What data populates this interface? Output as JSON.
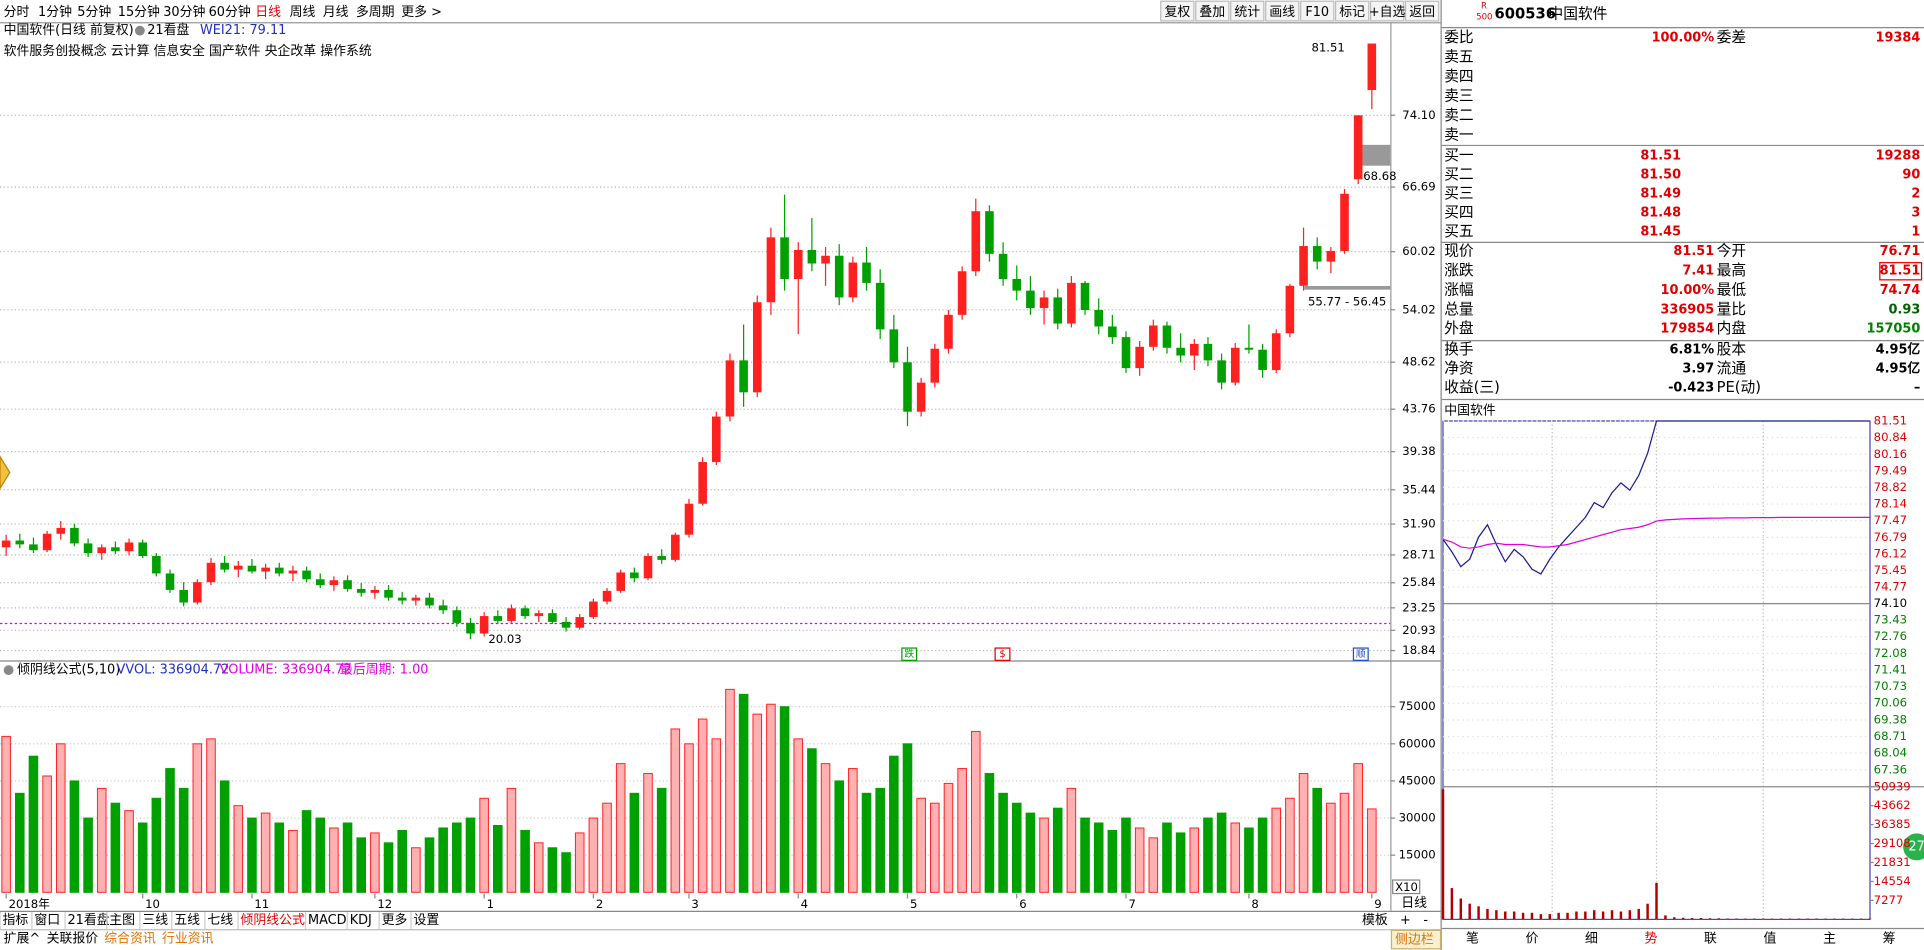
{
  "toolbar": {
    "periods": [
      {
        "label": "分时"
      },
      {
        "label": "1分钟"
      },
      {
        "label": "5分钟"
      },
      {
        "label": "15分钟"
      },
      {
        "label": "30分钟"
      },
      {
        "label": "60分钟"
      },
      {
        "label": "日线",
        "active": true
      },
      {
        "label": "周线"
      },
      {
        "label": "月线"
      },
      {
        "label": "多周期"
      },
      {
        "label": "更多 >"
      }
    ],
    "buttons": [
      "复权",
      "叠加",
      "统计",
      "画线",
      "F10",
      "标记",
      "+自选",
      "返回"
    ]
  },
  "main_chart": {
    "type": "candlestick",
    "title": "中国软件(日线 前复权)",
    "indicator_name": "21看盘",
    "indicator_value": "WEI21: 79.11",
    "concepts": "软件服务创投概念 云计算 信息安全 国产软件 央企改革 操作系统",
    "categories": [
      "2018年",
      null,
      null,
      null,
      null,
      null,
      null,
      null,
      null,
      null,
      "10",
      null,
      null,
      null,
      null,
      null,
      null,
      null,
      "11",
      null,
      null,
      null,
      null,
      null,
      null,
      null,
      null,
      "12",
      null,
      null,
      null,
      null,
      null,
      null,
      null,
      "1",
      null,
      null,
      null,
      null,
      null,
      null,
      null,
      "2",
      null,
      null,
      null,
      null,
      null,
      null,
      "3",
      null,
      null,
      null,
      null,
      null,
      null,
      null,
      "4",
      null,
      null,
      null,
      null,
      null,
      null,
      null,
      "5",
      null,
      null,
      null,
      null,
      null,
      null,
      null,
      "6",
      null,
      null,
      null,
      null,
      null,
      null,
      null,
      "7",
      null,
      null,
      null,
      null,
      null,
      null,
      null,
      null,
      "8",
      null,
      null,
      null,
      null,
      null,
      null,
      null,
      null,
      "9"
    ],
    "ohlc": [
      [
        29.5,
        30.8,
        28.6,
        30.2
      ],
      [
        30.2,
        30.9,
        29.4,
        29.8
      ],
      [
        29.8,
        30.5,
        28.9,
        29.2
      ],
      [
        29.2,
        31.2,
        29.0,
        30.9
      ],
      [
        30.9,
        32.2,
        30.3,
        31.5
      ],
      [
        31.5,
        31.9,
        29.6,
        29.9
      ],
      [
        29.9,
        30.4,
        28.5,
        28.9
      ],
      [
        28.9,
        29.8,
        28.2,
        29.5
      ],
      [
        29.5,
        30.1,
        28.8,
        29.1
      ],
      [
        29.1,
        30.4,
        28.7,
        30.0
      ],
      [
        30.0,
        30.3,
        28.4,
        28.6
      ],
      [
        28.6,
        28.9,
        26.5,
        26.8
      ],
      [
        26.8,
        27.2,
        24.8,
        25.1
      ],
      [
        25.1,
        25.9,
        23.4,
        23.8
      ],
      [
        23.8,
        26.2,
        23.6,
        25.9
      ],
      [
        25.9,
        28.4,
        25.6,
        27.9
      ],
      [
        27.9,
        28.6,
        26.9,
        27.2
      ],
      [
        27.2,
        28.1,
        26.4,
        27.6
      ],
      [
        27.6,
        28.3,
        26.8,
        27.0
      ],
      [
        27.0,
        27.8,
        26.2,
        27.4
      ],
      [
        27.4,
        27.9,
        26.5,
        26.8
      ],
      [
        26.8,
        27.6,
        26.0,
        27.1
      ],
      [
        27.1,
        27.5,
        25.9,
        26.2
      ],
      [
        26.2,
        26.8,
        25.3,
        25.6
      ],
      [
        25.6,
        26.5,
        25.0,
        26.1
      ],
      [
        26.1,
        26.6,
        24.9,
        25.2
      ],
      [
        25.2,
        25.8,
        24.4,
        24.8
      ],
      [
        24.8,
        25.5,
        24.2,
        25.1
      ],
      [
        25.1,
        25.6,
        24.0,
        24.3
      ],
      [
        24.3,
        24.9,
        23.6,
        24.0
      ],
      [
        24.0,
        24.6,
        23.5,
        24.3
      ],
      [
        24.3,
        24.8,
        23.2,
        23.5
      ],
      [
        23.5,
        24.1,
        22.6,
        23.0
      ],
      [
        23.0,
        23.4,
        21.3,
        21.7
      ],
      [
        21.7,
        22.2,
        20.03,
        20.6
      ],
      [
        20.6,
        22.8,
        20.3,
        22.4
      ],
      [
        22.4,
        23.0,
        21.6,
        21.9
      ],
      [
        21.9,
        23.6,
        21.7,
        23.2
      ],
      [
        23.2,
        23.5,
        22.1,
        22.4
      ],
      [
        22.4,
        23.0,
        21.8,
        22.7
      ],
      [
        22.7,
        23.1,
        21.6,
        21.8
      ],
      [
        21.8,
        22.3,
        20.8,
        21.2
      ],
      [
        21.2,
        22.6,
        21.0,
        22.3
      ],
      [
        22.3,
        24.2,
        22.1,
        23.9
      ],
      [
        23.9,
        25.3,
        23.6,
        25.0
      ],
      [
        25.0,
        27.2,
        24.8,
        26.9
      ],
      [
        26.9,
        27.4,
        25.9,
        26.3
      ],
      [
        26.3,
        28.9,
        26.1,
        28.6
      ],
      [
        28.6,
        29.3,
        27.8,
        28.2
      ],
      [
        28.2,
        31.0,
        28.0,
        30.8
      ],
      [
        30.8,
        34.5,
        30.5,
        34.0
      ],
      [
        34.0,
        38.8,
        33.8,
        38.3
      ],
      [
        38.3,
        43.5,
        38.0,
        43.0
      ],
      [
        43.0,
        49.5,
        42.5,
        48.8
      ],
      [
        48.8,
        52.5,
        44.0,
        45.5
      ],
      [
        45.5,
        55.5,
        45.0,
        54.8
      ],
      [
        54.8,
        62.5,
        53.5,
        61.5
      ],
      [
        61.5,
        65.9,
        56.0,
        57.2
      ],
      [
        57.2,
        61.0,
        51.5,
        60.2
      ],
      [
        60.2,
        63.5,
        58.0,
        58.8
      ],
      [
        58.8,
        60.5,
        56.5,
        59.6
      ],
      [
        59.6,
        60.8,
        54.5,
        55.3
      ],
      [
        55.3,
        59.5,
        54.8,
        58.9
      ],
      [
        58.9,
        60.5,
        56.0,
        56.8
      ],
      [
        56.8,
        58.2,
        51.0,
        52.0
      ],
      [
        52.0,
        53.5,
        48.0,
        48.6
      ],
      [
        48.6,
        50.2,
        42.0,
        43.5
      ],
      [
        43.5,
        47.0,
        43.0,
        46.5
      ],
      [
        46.5,
        50.5,
        46.0,
        50.0
      ],
      [
        50.0,
        54.0,
        49.5,
        53.5
      ],
      [
        53.5,
        58.5,
        53.0,
        58.0
      ],
      [
        58.0,
        65.5,
        57.5,
        64.2
      ],
      [
        64.2,
        64.8,
        59.0,
        59.8
      ],
      [
        59.8,
        61.0,
        56.5,
        57.2
      ],
      [
        57.2,
        58.6,
        55.0,
        56.0
      ],
      [
        56.0,
        57.5,
        53.5,
        54.2
      ],
      [
        54.2,
        56.0,
        52.5,
        55.3
      ],
      [
        55.3,
        56.2,
        52.0,
        52.6
      ],
      [
        52.6,
        57.5,
        52.2,
        56.8
      ],
      [
        56.8,
        57.0,
        53.5,
        54.0
      ],
      [
        54.0,
        55.2,
        51.5,
        52.3
      ],
      [
        52.3,
        53.5,
        50.5,
        51.2
      ],
      [
        51.2,
        51.8,
        47.5,
        48.0
      ],
      [
        48.0,
        50.8,
        47.2,
        50.2
      ],
      [
        50.2,
        53.0,
        49.8,
        52.4
      ],
      [
        52.4,
        52.8,
        49.5,
        50.1
      ],
      [
        50.1,
        51.6,
        48.6,
        49.3
      ],
      [
        49.3,
        51.0,
        47.8,
        50.5
      ],
      [
        50.5,
        51.2,
        48.2,
        48.8
      ],
      [
        48.8,
        49.5,
        45.8,
        46.5
      ],
      [
        46.5,
        50.6,
        46.2,
        50.1
      ],
      [
        50.1,
        52.5,
        49.5,
        49.9
      ],
      [
        49.9,
        50.5,
        47.0,
        47.8
      ],
      [
        47.8,
        52.0,
        47.5,
        51.6
      ],
      [
        51.6,
        56.7,
        51.2,
        56.5
      ],
      [
        56.5,
        62.5,
        56.0,
        60.6
      ],
      [
        60.6,
        61.5,
        58.2,
        59.0
      ],
      [
        59.0,
        60.5,
        57.8,
        60.1
      ],
      [
        60.1,
        66.5,
        59.8,
        66.0
      ],
      [
        67.5,
        74.1,
        67.0,
        74.1
      ],
      [
        76.71,
        81.51,
        74.74,
        81.51
      ]
    ],
    "ylim": [
      17.83,
      82.71
    ],
    "yticks": [
      {
        "value": 74.1,
        "label": "74.10"
      },
      66.69,
      60.02,
      54.02,
      48.62,
      43.76,
      39.38,
      35.44,
      {
        "value": 31.9,
        "label": "31.90"
      },
      28.71,
      25.84,
      23.25,
      20.93,
      18.84
    ],
    "up_color": "#ff2020",
    "down_color": "#00a000",
    "grid": true,
    "annotations": [
      "81.51",
      "68.68",
      "55.77 - 56.45",
      "20.03"
    ],
    "signals": [
      "跌",
      "$",
      "顺"
    ]
  },
  "volume_chart": {
    "type": "bar",
    "title": "倾阴线公式(5,10)",
    "vvol": "VVOL: 336904.72",
    "volume": "VOLUME: 336904.72",
    "last_period": "最后周期: 1.00",
    "multiplier": "X10",
    "values": [
      63000,
      40000,
      55000,
      47000,
      60000,
      45000,
      30000,
      42000,
      36000,
      33000,
      28000,
      38000,
      50000,
      42000,
      60000,
      62000,
      45000,
      35000,
      30000,
      32000,
      28000,
      25000,
      33000,
      30000,
      26000,
      28000,
      22000,
      24000,
      20000,
      25000,
      18000,
      22000,
      26000,
      28000,
      30000,
      38000,
      27000,
      42000,
      25000,
      20000,
      18000,
      16000,
      24000,
      30000,
      36000,
      52000,
      40000,
      48000,
      42000,
      66000,
      60000,
      70000,
      62000,
      82000,
      80000,
      72000,
      76000,
      75000,
      62000,
      58000,
      52000,
      45000,
      50000,
      40000,
      42000,
      55000,
      60000,
      38000,
      36000,
      44000,
      50000,
      65000,
      48000,
      40000,
      36000,
      32000,
      30000,
      34000,
      42000,
      30000,
      28000,
      25000,
      30000,
      26000,
      22000,
      28000,
      24000,
      26000,
      30000,
      32000,
      28000,
      26000,
      30000,
      34000,
      38000,
      48000,
      42000,
      36000,
      40000,
      52000,
      33690
    ],
    "ylim": [
      0,
      84800
    ],
    "yticks": [
      75000,
      60000,
      45000,
      30000,
      15000
    ]
  },
  "bottom_tabs": {
    "row1": [
      {
        "label": "指标"
      },
      {
        "label": "窗口"
      },
      {
        "label": "21看盘"
      },
      {
        "label": "主图"
      },
      {
        "label": "三线"
      },
      {
        "label": "五线"
      },
      {
        "label": "七线"
      },
      {
        "label": "倾阴线公式",
        "color": "#e00000"
      },
      {
        "label": "MACD"
      },
      {
        "label": "KDJ"
      },
      {
        "label": "更多"
      },
      {
        "label": "设置"
      }
    ],
    "row2": [
      {
        "label": "扩展^"
      },
      {
        "label": "关联报价"
      },
      {
        "label": "综合资讯",
        "color": "#e07000"
      },
      {
        "label": "行业资讯",
        "color": "#e07000"
      }
    ],
    "right": [
      "模板",
      "+",
      "-"
    ],
    "period": "日线",
    "sidebar": "侧边栏"
  },
  "quote": {
    "badge": [
      "R",
      "500"
    ],
    "code": "600536",
    "name": "中国软件",
    "ratio_row": [
      "委比",
      "100.00%",
      "委差",
      "19384"
    ],
    "asks": [
      "卖五",
      "卖四",
      "卖三",
      "卖二",
      "卖一"
    ],
    "bids": [
      [
        "买一",
        "81.51",
        "19288"
      ],
      [
        "买二",
        "81.50",
        "90"
      ],
      [
        "买三",
        "81.49",
        "2"
      ],
      [
        "买四",
        "81.48",
        "3"
      ],
      [
        "买五",
        "81.45",
        "1"
      ]
    ],
    "stats": [
      [
        "现价",
        "81.51",
        "今开",
        "76.71"
      ],
      [
        "涨跌",
        "7.41",
        "最高",
        "81.51"
      ],
      [
        "涨幅",
        "10.00%",
        "最低",
        "74.74"
      ],
      [
        "总量",
        "336905",
        "量比",
        "0.93"
      ],
      [
        "外盘",
        "179854",
        "内盘",
        "157050"
      ]
    ],
    "fund": [
      [
        "换手",
        "6.81%",
        "股本",
        "4.95亿"
      ],
      [
        "净资",
        "3.97",
        "流通",
        "4.95亿"
      ],
      [
        "收益(三)",
        "-0.423",
        "PE(动)",
        "–"
      ]
    ],
    "side_badge": "27"
  },
  "intraday": {
    "type": "line",
    "title": "中国软件",
    "x": [
      0,
      5,
      10,
      15,
      20,
      25,
      30,
      35,
      40,
      45,
      50,
      55,
      60,
      65,
      70,
      75,
      80,
      85,
      90,
      95,
      100,
      105,
      110,
      115,
      120,
      125,
      130,
      135,
      140,
      145,
      150,
      155,
      160,
      165,
      170,
      175,
      180,
      185,
      190,
      195,
      200,
      205,
      210,
      215,
      220,
      225,
      230,
      235,
      240
    ],
    "xlim": [
      0,
      240
    ],
    "series": [
      {
        "color": "#1a1a9a",
        "values": [
          76.71,
          76.2,
          75.6,
          75.9,
          76.8,
          77.3,
          76.5,
          75.8,
          76.3,
          76.0,
          75.5,
          75.3,
          75.9,
          76.4,
          76.8,
          77.2,
          77.6,
          78.2,
          78.0,
          78.6,
          79.0,
          78.7,
          79.3,
          80.2,
          81.51,
          81.51,
          81.51,
          81.51,
          81.51,
          81.51,
          81.51,
          81.51,
          81.51,
          81.51,
          81.51,
          81.51,
          81.51,
          81.51,
          81.51,
          81.51,
          81.51,
          81.51,
          81.51,
          81.51,
          81.51,
          81.51,
          81.51,
          81.51,
          81.51
        ]
      },
      {
        "color": "#e000e0",
        "values": [
          76.71,
          76.6,
          76.4,
          76.35,
          76.4,
          76.5,
          76.55,
          76.5,
          76.5,
          76.5,
          76.45,
          76.4,
          76.4,
          76.45,
          76.5,
          76.6,
          76.7,
          76.8,
          76.9,
          77.0,
          77.1,
          77.15,
          77.2,
          77.3,
          77.45,
          77.5,
          77.52,
          77.54,
          77.55,
          77.56,
          77.57,
          77.57,
          77.58,
          77.58,
          77.58,
          77.59,
          77.59,
          77.59,
          77.6,
          77.6,
          77.6,
          77.6,
          77.6,
          77.6,
          77.6,
          77.6,
          77.6,
          77.6,
          77.6
        ]
      }
    ],
    "ylim": [
      66.92,
      81.51
    ],
    "yticks": [
      81.51,
      80.84,
      80.16,
      79.49,
      78.82,
      78.14,
      77.47,
      76.79,
      76.12,
      75.45,
      74.77,
      {
        "value": 74.1,
        "label": "74.10"
      },
      73.43,
      72.76,
      72.08,
      71.41,
      70.73,
      70.06,
      69.38,
      68.71,
      68.04,
      67.36
    ],
    "volume": {
      "color": "#b00000",
      "values": [
        50000,
        12000,
        8000,
        6000,
        5000,
        4000,
        3500,
        3000,
        3000,
        2500,
        2500,
        2000,
        2000,
        2500,
        2500,
        3000,
        3000,
        3500,
        3000,
        3500,
        3000,
        3500,
        4000,
        6000,
        14000,
        1500,
        800,
        600,
        500,
        500,
        400,
        400,
        300,
        300,
        300,
        300,
        300,
        300,
        300,
        300,
        300,
        300,
        300,
        300,
        300,
        300,
        300,
        300,
        300
      ],
      "ylim": [
        0,
        50939
      ],
      "yticks": [
        50939,
        43662,
        36385,
        29108,
        21831,
        14554,
        7277
      ]
    },
    "tabs": [
      "笔",
      "价",
      "细",
      "势",
      "联",
      "值",
      "主",
      "筹"
    ]
  }
}
